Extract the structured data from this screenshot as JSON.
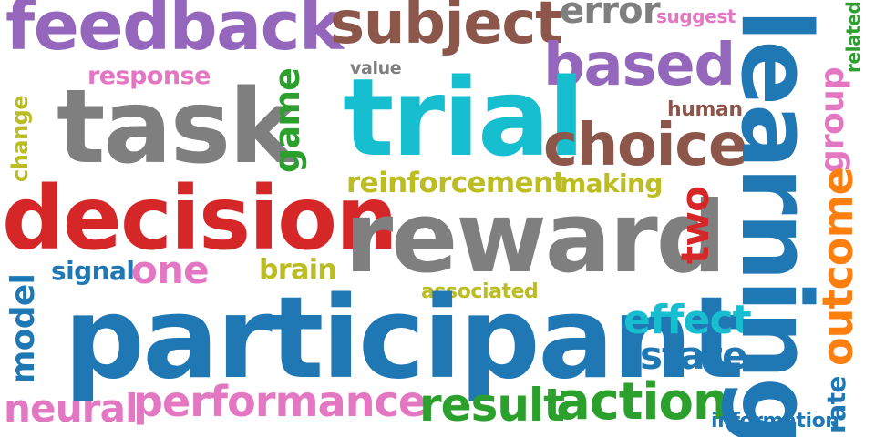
{
  "colors": {
    "purple": "#9467bd",
    "brown": "#8c564b",
    "gray": "#7f7f7f",
    "teal": "#17becf",
    "red": "#d62728",
    "blue": "#1f77b4",
    "pink": "#e377c2",
    "green": "#2ca02c",
    "olive": "#bcbd22",
    "orange": "#ff7f0e"
  },
  "words": {
    "feedback": "feedback",
    "subject": "subject",
    "error": "error",
    "suggest": "suggest",
    "related": "related",
    "learning": "learning",
    "response": "response",
    "value": "value",
    "based": "based",
    "task": "task",
    "game": "game",
    "trial": "trial",
    "human": "human",
    "change": "change",
    "choice": "choice",
    "group": "group",
    "reinforcement": "reinforcement",
    "making": "making",
    "decision": "decision",
    "reward": "reward",
    "two": "two",
    "outcome": "outcome",
    "signal": "signal",
    "one": "one",
    "brain": "brain",
    "associated": "associated",
    "model": "model",
    "participant": "participant",
    "effect": "effect",
    "state": "state",
    "neural": "neural",
    "performance": "performance",
    "result": "result",
    "action": "action",
    "rate": "rate",
    "information": "information"
  }
}
